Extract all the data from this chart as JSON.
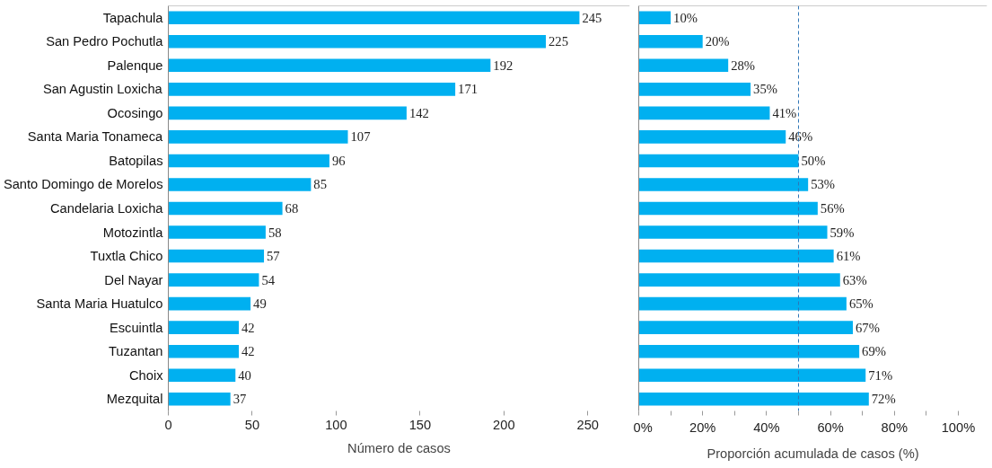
{
  "chart_data": [
    {
      "type": "bar",
      "orientation": "horizontal",
      "xlabel": "Número de casos",
      "categories": [
        "Tapachula",
        "San Pedro Pochutla",
        "Palenque",
        "San Agustin Loxicha",
        "Ocosingo",
        "Santa Maria Tonameca",
        "Batopilas",
        "Santo Domingo de Morelos",
        "Candelaria Loxicha",
        "Motozintla",
        "Tuxtla Chico",
        "Del Nayar",
        "Santa Maria Huatulco",
        "Escuintla",
        "Tuzantan",
        "Choix",
        "Mezquital"
      ],
      "values": [
        245,
        225,
        192,
        171,
        142,
        107,
        96,
        85,
        68,
        58,
        57,
        54,
        49,
        42,
        42,
        40,
        37
      ],
      "color": "#00b0f0",
      "data_labels": true,
      "xlim": [
        0,
        275
      ],
      "xticks": [
        0,
        50,
        100,
        150,
        200,
        250
      ],
      "grid": false
    },
    {
      "type": "bar",
      "orientation": "horizontal",
      "xlabel": "Proporción acumulada de casos (%)",
      "categories": [
        null,
        null,
        null,
        null,
        null,
        null,
        null,
        null,
        null,
        null,
        null,
        null,
        null,
        null,
        null,
        null,
        null
      ],
      "values": [
        10,
        20,
        28,
        35,
        41,
        46,
        50,
        53,
        56,
        59,
        61,
        63,
        65,
        67,
        69,
        71,
        72
      ],
      "value_labels": [
        "10%",
        "20%",
        "28%",
        "35%",
        "41%",
        "46%",
        "50%",
        "53%",
        "56%",
        "59%",
        "61%",
        "63%",
        "65%",
        "67%",
        "69%",
        "71%",
        "72%"
      ],
      "color": "#00b0f0",
      "xlim": [
        0,
        109
      ],
      "grid": false,
      "tick_labels": "x",
      "xticks": [
        {
          "value": 0,
          "label": "0%"
        },
        {
          "value": 10,
          "label": null
        },
        {
          "value": 20,
          "label": "20%"
        },
        {
          "value": 30,
          "label": null
        },
        {
          "value": 40,
          "label": "40%"
        },
        {
          "value": 50,
          "label": null
        },
        {
          "value": 60,
          "label": "60%"
        },
        {
          "value": 70,
          "label": null
        },
        {
          "value": 80,
          "label": "80%"
        },
        {
          "value": 90,
          "label": null
        },
        {
          "value": 100,
          "label": "100%"
        }
      ],
      "ref_lines": [
        {
          "axis": "x",
          "value": 50,
          "color": "#2e75b6",
          "line_style": "dashed"
        }
      ]
    }
  ]
}
